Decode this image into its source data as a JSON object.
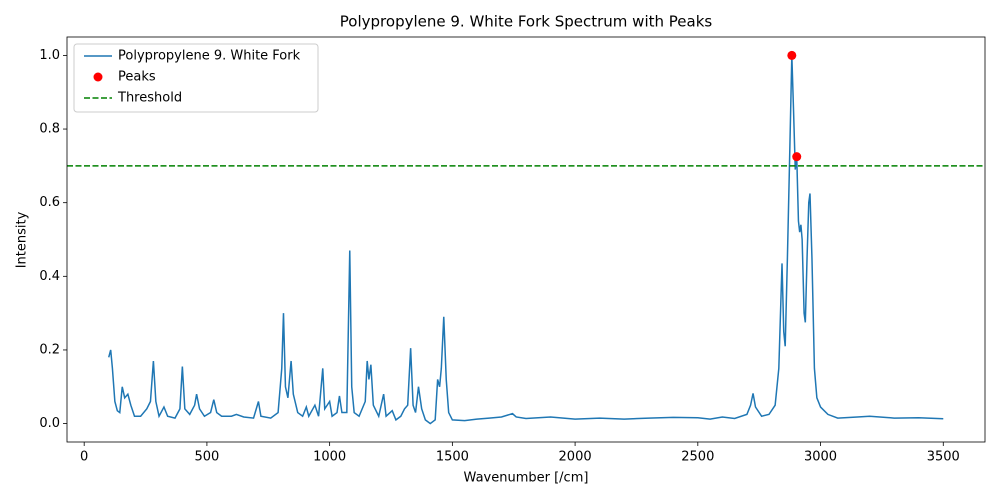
{
  "chart_data": {
    "type": "line",
    "title": "Polypropylene 9. White Fork Spectrum with Peaks",
    "xlabel": "Wavenumber [/cm]",
    "ylabel": "Intensity",
    "xlim": [
      -70,
      3670
    ],
    "ylim": [
      -0.05,
      1.05
    ],
    "xticks": [
      0,
      500,
      1000,
      1500,
      2000,
      2500,
      3000,
      3500
    ],
    "yticks": [
      {
        "value": 0,
        "label": "0.0"
      },
      0.2,
      0.4,
      0.6,
      0.8,
      {
        "value": 1,
        "label": "1.0"
      }
    ],
    "grid": false,
    "legend": "upper left",
    "series": [
      {
        "name": "Polypropylene 9. White Fork",
        "color": "#1f77b4",
        "x": [
          100,
          108,
          115,
          125,
          135,
          145,
          155,
          165,
          178,
          190,
          205,
          230,
          255,
          270,
          282,
          292,
          305,
          325,
          340,
          370,
          390,
          400,
          410,
          430,
          450,
          458,
          470,
          490,
          515,
          528,
          540,
          560,
          600,
          620,
          650,
          690,
          710,
          720,
          760,
          790,
          805,
          812,
          820,
          830,
          843,
          852,
          870,
          890,
          905,
          915,
          940,
          955,
          972,
          980,
          1000,
          1010,
          1030,
          1040,
          1050,
          1070,
          1082,
          1090,
          1100,
          1120,
          1145,
          1153,
          1160,
          1168,
          1178,
          1200,
          1220,
          1230,
          1255,
          1270,
          1290,
          1305,
          1318,
          1330,
          1340,
          1350,
          1362,
          1375,
          1390,
          1410,
          1430,
          1440,
          1448,
          1455,
          1465,
          1475,
          1485,
          1500,
          1550,
          1600,
          1650,
          1700,
          1745,
          1760,
          1800,
          1900,
          2000,
          2100,
          2200,
          2300,
          2400,
          2500,
          2550,
          2600,
          2650,
          2700,
          2715,
          2725,
          2735,
          2760,
          2790,
          2815,
          2830,
          2843,
          2850,
          2856,
          2865,
          2875,
          2883,
          2890,
          2897,
          2903,
          2910,
          2915,
          2920,
          2925,
          2933,
          2938,
          2945,
          2952,
          2957,
          2965,
          2975,
          2985,
          3000,
          3030,
          3070,
          3150,
          3200,
          3300,
          3400,
          3500
        ],
        "values": [
          0.18,
          0.2,
          0.15,
          0.06,
          0.035,
          0.03,
          0.1,
          0.07,
          0.08,
          0.05,
          0.02,
          0.02,
          0.04,
          0.06,
          0.17,
          0.06,
          0.02,
          0.045,
          0.02,
          0.015,
          0.04,
          0.155,
          0.04,
          0.025,
          0.05,
          0.08,
          0.04,
          0.02,
          0.03,
          0.065,
          0.03,
          0.02,
          0.02,
          0.025,
          0.018,
          0.015,
          0.06,
          0.02,
          0.015,
          0.03,
          0.15,
          0.3,
          0.1,
          0.07,
          0.17,
          0.08,
          0.03,
          0.02,
          0.045,
          0.02,
          0.05,
          0.02,
          0.15,
          0.04,
          0.06,
          0.02,
          0.03,
          0.075,
          0.03,
          0.03,
          0.47,
          0.1,
          0.03,
          0.02,
          0.06,
          0.17,
          0.12,
          0.16,
          0.05,
          0.02,
          0.08,
          0.02,
          0.035,
          0.01,
          0.02,
          0.04,
          0.05,
          0.205,
          0.05,
          0.03,
          0.1,
          0.04,
          0.01,
          0.0,
          0.01,
          0.12,
          0.1,
          0.15,
          0.29,
          0.12,
          0.03,
          0.01,
          0.008,
          0.012,
          0.015,
          0.018,
          0.027,
          0.018,
          0.014,
          0.018,
          0.012,
          0.015,
          0.012,
          0.015,
          0.017,
          0.016,
          0.012,
          0.018,
          0.014,
          0.025,
          0.05,
          0.082,
          0.045,
          0.02,
          0.025,
          0.05,
          0.15,
          0.435,
          0.25,
          0.21,
          0.45,
          0.75,
          1.0,
          0.85,
          0.69,
          0.725,
          0.55,
          0.52,
          0.54,
          0.5,
          0.3,
          0.275,
          0.45,
          0.6,
          0.625,
          0.45,
          0.15,
          0.07,
          0.045,
          0.025,
          0.015,
          0.018,
          0.02,
          0.015,
          0.016,
          0.013
        ]
      }
    ],
    "peaks": {
      "name": "Peaks",
      "color": "#ff0000",
      "x": [
        2883,
        2903
      ],
      "values": [
        1.0,
        0.725
      ]
    },
    "threshold": {
      "name": "Threshold",
      "color": "#008000",
      "value": 0.7
    }
  }
}
